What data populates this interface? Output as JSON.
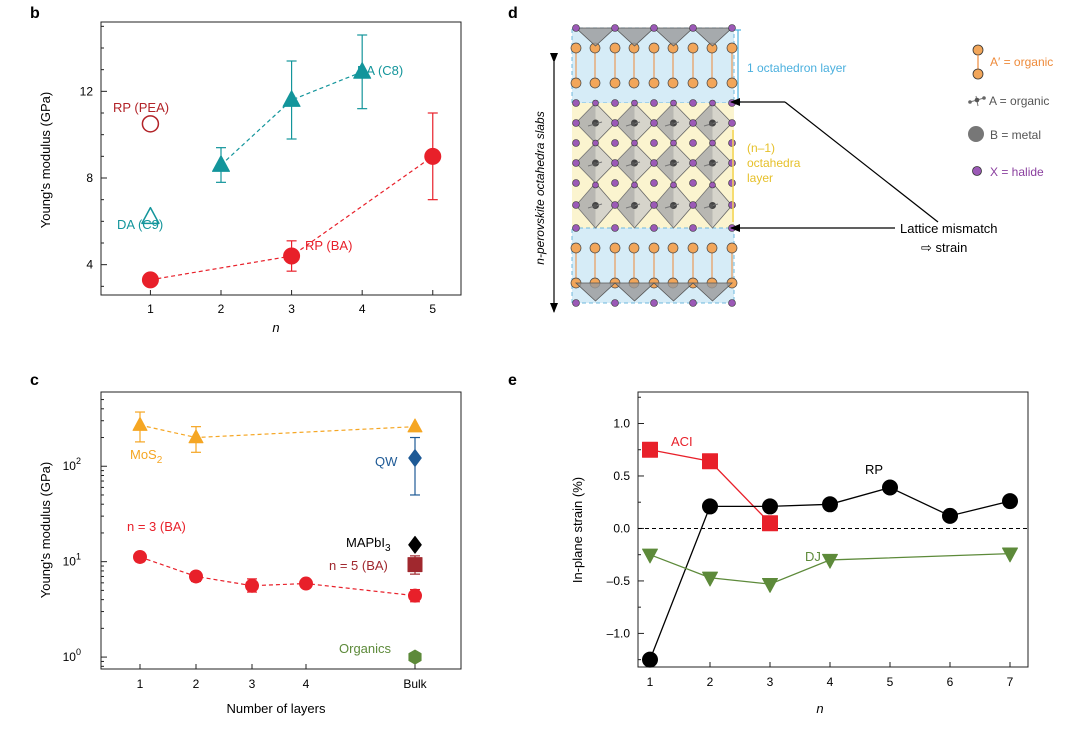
{
  "panels": {
    "b": {
      "letter": "b",
      "chart_data": {
        "type": "scatter",
        "xlabel": "n",
        "ylabel": "Young's modulus (GPa)",
        "xlim": [
          0.3,
          5.4
        ],
        "ylim": [
          2.6,
          15.2
        ],
        "xticks": [
          1,
          2,
          3,
          4,
          5
        ],
        "yticks": [
          4,
          8,
          12
        ],
        "series": [
          {
            "name": "RP (BA)",
            "color": "#e8202a",
            "marker": "circle",
            "filled": true,
            "dashed": true,
            "x": [
              1,
              3,
              5
            ],
            "y": [
              3.3,
              4.4,
              9.0
            ],
            "err": [
              0,
              0.7,
              2.0
            ]
          },
          {
            "name": "DA (C8)",
            "color": "#13959b",
            "marker": "triangle",
            "filled": true,
            "dashed": true,
            "x": [
              2,
              3,
              4
            ],
            "y": [
              8.6,
              11.6,
              12.9
            ],
            "err": [
              0.8,
              1.8,
              1.7
            ]
          },
          {
            "name": "RP (PEA)",
            "color": "#b22328",
            "marker": "circle",
            "filled": false,
            "dashed": false,
            "x": [
              1
            ],
            "y": [
              10.5
            ],
            "err": [
              0
            ]
          },
          {
            "name": "DA (C9)",
            "color": "#13959b",
            "marker": "triangle",
            "filled": false,
            "dashed": false,
            "x": [
              1
            ],
            "y": [
              6.2
            ],
            "err": [
              0
            ]
          }
        ],
        "labels": [
          {
            "text": "RP (PEA)",
            "color": "#b22328"
          },
          {
            "text": "DA (C8)",
            "color": "#13959b"
          },
          {
            "text": "DA (C9)",
            "color": "#13959b"
          },
          {
            "text": "RP (BA)",
            "color": "#e8202a"
          }
        ]
      }
    },
    "c": {
      "letter": "c",
      "chart_data": {
        "type": "scatter",
        "xlabel": "Number of layers",
        "ylabel": "Young's modulus (GPa)",
        "yscale": "log",
        "xcategories": [
          "1",
          "2",
          "3",
          "4",
          "Bulk"
        ],
        "ylim": [
          0.75,
          600
        ],
        "yticks": [
          {
            "base": "10",
            "exp": "0"
          },
          {
            "base": "10",
            "exp": "1"
          },
          {
            "base": "10",
            "exp": "2"
          }
        ],
        "series": [
          {
            "name": "MoS2",
            "color": "#f5a623",
            "marker": "triangle",
            "dashed": true,
            "x": [
              "1",
              "2",
              "Bulk"
            ],
            "y": [
              270,
              200,
              260
            ],
            "err_lo": [
              180,
              140,
              0
            ],
            "err_hi": [
              370,
              260,
              0
            ]
          },
          {
            "name": "n = 3 (BA)",
            "color": "#e8202a",
            "marker": "circle",
            "dashed": true,
            "x": [
              "1",
              "2",
              "3",
              "4",
              "Bulk"
            ],
            "y": [
              11.2,
              7.0,
              5.6,
              5.9,
              4.4
            ],
            "err_lo": [
              10.0,
              6.2,
              4.8,
              5.4,
              3.8
            ],
            "err_hi": [
              12.5,
              7.8,
              6.6,
              6.4,
              5.1
            ]
          },
          {
            "name": "QW",
            "color": "#1e5a96",
            "marker": "diamond",
            "dashed": false,
            "x": [
              "Bulk"
            ],
            "y": [
              122
            ],
            "err_lo": [
              50
            ],
            "err_hi": [
              200
            ]
          },
          {
            "name": "MAPbI3",
            "color": "#000000",
            "marker": "diamond",
            "dashed": false,
            "x": [
              "Bulk"
            ],
            "y": [
              15
            ],
            "err_lo": [
              0
            ],
            "err_hi": [
              0
            ]
          },
          {
            "name": "n = 5 (BA)",
            "color": "#a0282e",
            "marker": "square",
            "dashed": false,
            "x": [
              "Bulk"
            ],
            "y": [
              9.3
            ],
            "err_lo": [
              7.4
            ],
            "err_hi": [
              11.5
            ]
          },
          {
            "name": "Organics",
            "color": "#5d8a3a",
            "marker": "hexagon",
            "dashed": false,
            "x": [
              "Bulk"
            ],
            "y": [
              1.0
            ],
            "err_lo": [
              0
            ],
            "err_hi": [
              0
            ]
          }
        ],
        "labels": [
          {
            "main": "MoS",
            "sub": "2",
            "color": "#f5a623"
          },
          {
            "main": "QW",
            "color": "#1e5a96"
          },
          {
            "main": "n = 3 (BA)",
            "color": "#e8202a"
          },
          {
            "main": "MAPbI",
            "sub": "3",
            "color": "#000000"
          },
          {
            "main": "n = 5 (BA)",
            "color": "#a0282e"
          },
          {
            "main": "Organics",
            "color": "#5d8a3a"
          }
        ]
      }
    },
    "d": {
      "letter": "d",
      "axis_label": "n-perovskite octahedra slabs",
      "layer_top": "1 octahedron layer",
      "layer_mid_1": "(n–1)",
      "layer_mid_2": "octahedra",
      "layer_mid_3": "layer",
      "mismatch_1": "Lattice mismatch",
      "mismatch_2": "⇨ strain",
      "legend": [
        {
          "text": "A′ = organic",
          "color": "#ee8a3a",
          "icon": "dumbbell-icon"
        },
        {
          "text": "A = organic",
          "color": "#555555",
          "icon": "molecule-icon"
        },
        {
          "text": "B = metal",
          "color": "#555555",
          "icon": "metal-sphere-icon"
        },
        {
          "text": "X = halide",
          "color": "#8a3f9e",
          "icon": "halide-dot-icon"
        }
      ],
      "colors": {
        "spacer": "#d6ecf7",
        "inner": "#fbf4cf",
        "organic": "#f2a65a",
        "halide": "#9b59b6"
      }
    },
    "e": {
      "letter": "e",
      "chart_data": {
        "type": "line",
        "xlabel": "n",
        "ylabel": "In-plane strain (%)",
        "xlim": [
          0.8,
          7.3
        ],
        "ylim": [
          -1.32,
          1.3
        ],
        "xticks": [
          1,
          2,
          3,
          4,
          5,
          6,
          7
        ],
        "yticks": [
          1.0,
          0.5,
          0.0,
          -0.5,
          -1.0
        ],
        "ytick_labels": [
          "1.0",
          "0.5",
          "0.0",
          "–0.5",
          "–1.0"
        ],
        "zero_line": true,
        "series": [
          {
            "name": "ACI",
            "color": "#e8202a",
            "marker": "square",
            "x": [
              1,
              2,
              3
            ],
            "y": [
              0.75,
              0.64,
              0.05
            ]
          },
          {
            "name": "RP",
            "color": "#000000",
            "marker": "circle",
            "x": [
              1,
              2,
              3,
              4,
              5,
              6,
              7
            ],
            "y": [
              -1.25,
              0.21,
              0.21,
              0.23,
              0.39,
              0.12,
              0.26
            ]
          },
          {
            "name": "DJ",
            "color": "#5d8a3a",
            "marker": "triangle-down",
            "x": [
              1,
              2,
              3,
              4,
              7
            ],
            "y": [
              -0.25,
              -0.47,
              -0.53,
              -0.3,
              -0.24
            ]
          }
        ]
      }
    }
  }
}
